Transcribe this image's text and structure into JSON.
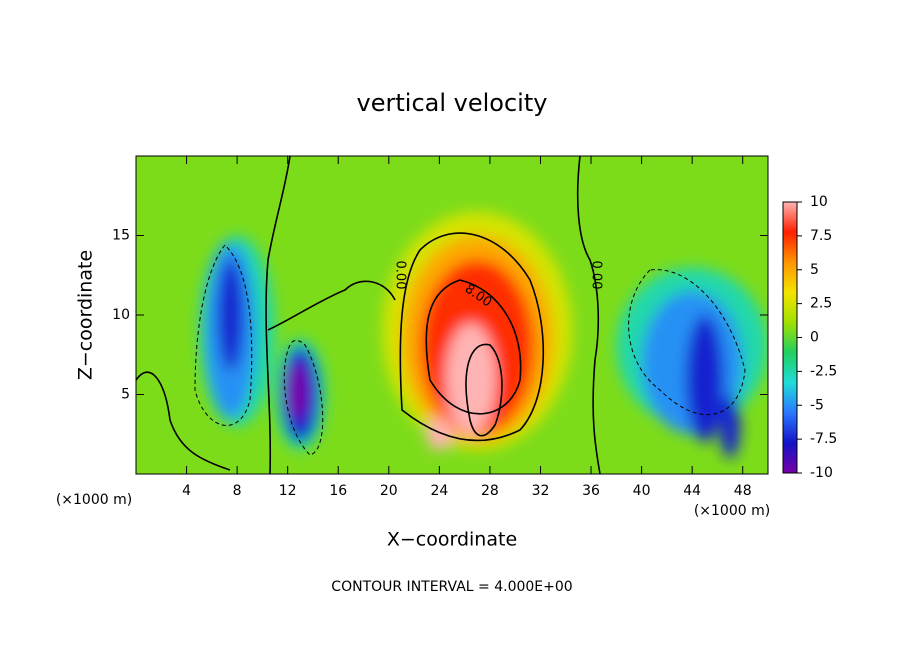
{
  "chart_data": {
    "type": "contour",
    "title": "vertical velocity",
    "x_label": "X−coordinate",
    "y_label": "Z−coordinate",
    "x_unit_left": "(×1000 m)",
    "x_unit_right": "(×1000 m)",
    "footer": "CONTOUR INTERVAL = 4.000E+00",
    "xlim": [
      0,
      50
    ],
    "xticks": [
      4,
      8,
      12,
      16,
      20,
      24,
      28,
      32,
      36,
      40,
      44,
      48
    ],
    "ylim": [
      0,
      20
    ],
    "yticks": [
      5,
      10,
      15
    ],
    "clim": [
      -10,
      10
    ],
    "cticks": [
      10,
      7.5,
      5,
      2.5,
      0,
      -2.5,
      -5,
      -7.5,
      -10
    ],
    "colormap": [
      "#7800a8",
      "#1414c8",
      "#2a78ff",
      "#20dcd8",
      "#20d060",
      "#a0e000",
      "#f4e400",
      "#ff9400",
      "#ff2000",
      "#ffb4b4"
    ],
    "background_value": 0.5,
    "contour_labels": [
      "0.00",
      "0.00",
      "8.00"
    ],
    "features": [
      {
        "x": 27,
        "z": 9,
        "rx": 7.5,
        "rz": 7.5,
        "value": 2.5
      },
      {
        "x": 27,
        "z": 8.5,
        "rx": 6,
        "rz": 6.5,
        "value": 5
      },
      {
        "x": 27,
        "z": 8,
        "rx": 4.5,
        "rz": 5.5,
        "value": 7.5
      },
      {
        "x": 26.5,
        "z": 6,
        "rx": 2,
        "rz": 3.5,
        "value": 10
      },
      {
        "x": 24,
        "z": 2.5,
        "rx": 1,
        "rz": 1,
        "value": 10
      },
      {
        "x": 8,
        "z": 9,
        "rx": 3,
        "rz": 6,
        "value": -2.5
      },
      {
        "x": 7.5,
        "z": 9,
        "rx": 2,
        "rz": 5.5,
        "value": -5
      },
      {
        "x": 7.5,
        "z": 10,
        "rx": 1,
        "rz": 3.5,
        "value": -7.5
      },
      {
        "x": 13,
        "z": 5,
        "rx": 2,
        "rz": 3.5,
        "value": -2.5
      },
      {
        "x": 13,
        "z": 5,
        "rx": 1.5,
        "rz": 3,
        "value": -7.5
      },
      {
        "x": 12.8,
        "z": 5.2,
        "rx": 0.8,
        "rz": 1.8,
        "value": -10
      },
      {
        "x": 44,
        "z": 8,
        "rx": 6,
        "rz": 5,
        "value": -2.5
      },
      {
        "x": 44,
        "z": 7,
        "rx": 4,
        "rz": 4.5,
        "value": -5
      },
      {
        "x": 45,
        "z": 6,
        "rx": 1.5,
        "rz": 4,
        "value": -7.5
      },
      {
        "x": 47,
        "z": 3,
        "rx": 0.8,
        "rz": 2,
        "value": -7.5
      }
    ]
  }
}
